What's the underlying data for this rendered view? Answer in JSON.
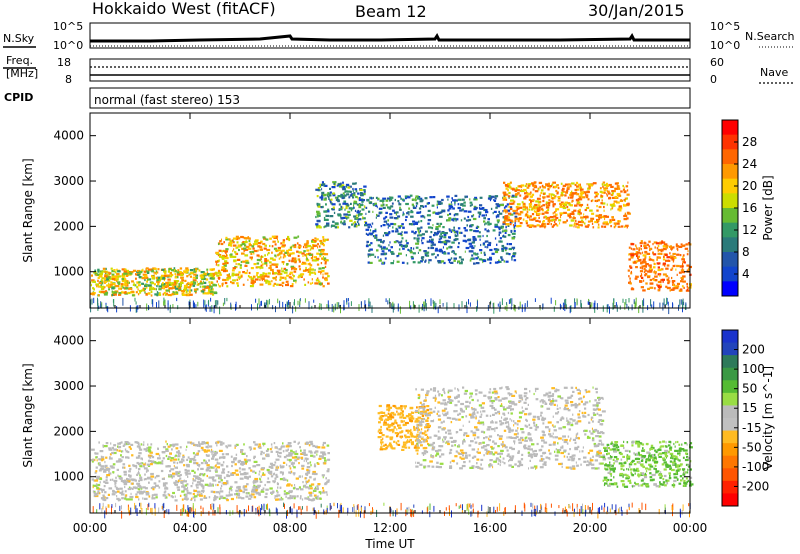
{
  "header": {
    "left": "Hokkaido West (fitACF)",
    "center": "Beam 12",
    "right": "30/Jan/2015"
  },
  "top_panels": {
    "nsky_label": "N.Sky",
    "nsearch_label": "N.Search",
    "freq_label": "Freq.",
    "freq_unit": "[MHz]",
    "nave_label": "Nave",
    "cpid_label": "CPID",
    "cpid_text": "normal (fast stereo) 153",
    "left_ticks": {
      "nsky_top": "10^5",
      "nsky_bottom": "10^0",
      "freq_top": "18",
      "freq_bottom": "8"
    },
    "right_ticks": {
      "nsky_top": "10^5",
      "nsky_bottom": "10^0",
      "nave_top": "60",
      "nave_bottom": "0"
    }
  },
  "colors": {
    "frame": "#000000"
  },
  "chart_data": [
    {
      "type": "heatmap",
      "title": "",
      "xlabel": "Time UT",
      "ylabel": "Slant Range [km]",
      "xlim": [
        "00:00",
        "24:00"
      ],
      "ylim": [
        200,
        4500
      ],
      "x_ticks": [
        "00:00",
        "04:00",
        "08:00",
        "12:00",
        "16:00",
        "20:00",
        "00:00"
      ],
      "y_ticks": [
        "1000",
        "2000",
        "3000",
        "4000"
      ],
      "colorbar": {
        "label": "Power [dB]",
        "ticks": [
          "28",
          "24",
          "20",
          "16",
          "12",
          "8",
          "4"
        ],
        "range": [
          0,
          30
        ]
      },
      "scatter_regions": [
        {
          "t_start": 0.0,
          "t_end": 5.0,
          "range_start": 500,
          "range_end": 1100,
          "value": 18
        },
        {
          "t_start": 5.0,
          "t_end": 9.5,
          "range_start": 700,
          "range_end": 1800,
          "value": 20
        },
        {
          "t_start": 9.0,
          "t_end": 11.0,
          "range_start": 2000,
          "range_end": 3000,
          "value": 12
        },
        {
          "t_start": 11.0,
          "t_end": 17.0,
          "range_start": 1200,
          "range_end": 2700,
          "value": 10
        },
        {
          "t_start": 16.5,
          "t_end": 21.5,
          "range_start": 2000,
          "range_end": 3000,
          "value": 22
        },
        {
          "t_start": 21.5,
          "t_end": 24.0,
          "range_start": 600,
          "range_end": 1700,
          "value": 24
        }
      ]
    },
    {
      "type": "heatmap",
      "title": "",
      "xlabel": "Time UT",
      "ylabel": "Slant Range [km]",
      "xlim": [
        "00:00",
        "24:00"
      ],
      "ylim": [
        200,
        4500
      ],
      "x_ticks": [
        "00:00",
        "04:00",
        "08:00",
        "12:00",
        "16:00",
        "20:00",
        "00:00"
      ],
      "y_ticks": [
        "1000",
        "2000",
        "3000",
        "4000"
      ],
      "colorbar": {
        "label": "Velocity [m s^-1]",
        "ticks": [
          "200",
          "100",
          "50",
          "15",
          "-15",
          "-50",
          "-100",
          "-200"
        ],
        "range": [
          -250,
          250
        ]
      },
      "scatter_regions": [
        {
          "t_start": 0.0,
          "t_end": 9.5,
          "range_start": 500,
          "range_end": 1800,
          "value": 0
        },
        {
          "t_start": 11.5,
          "t_end": 13.5,
          "range_start": 1600,
          "range_end": 2600,
          "value": -40
        },
        {
          "t_start": 13.0,
          "t_end": 20.5,
          "range_start": 1200,
          "range_end": 3000,
          "value": 0
        },
        {
          "t_start": 20.5,
          "t_end": 24.0,
          "range_start": 800,
          "range_end": 1800,
          "value": 30
        }
      ]
    }
  ]
}
